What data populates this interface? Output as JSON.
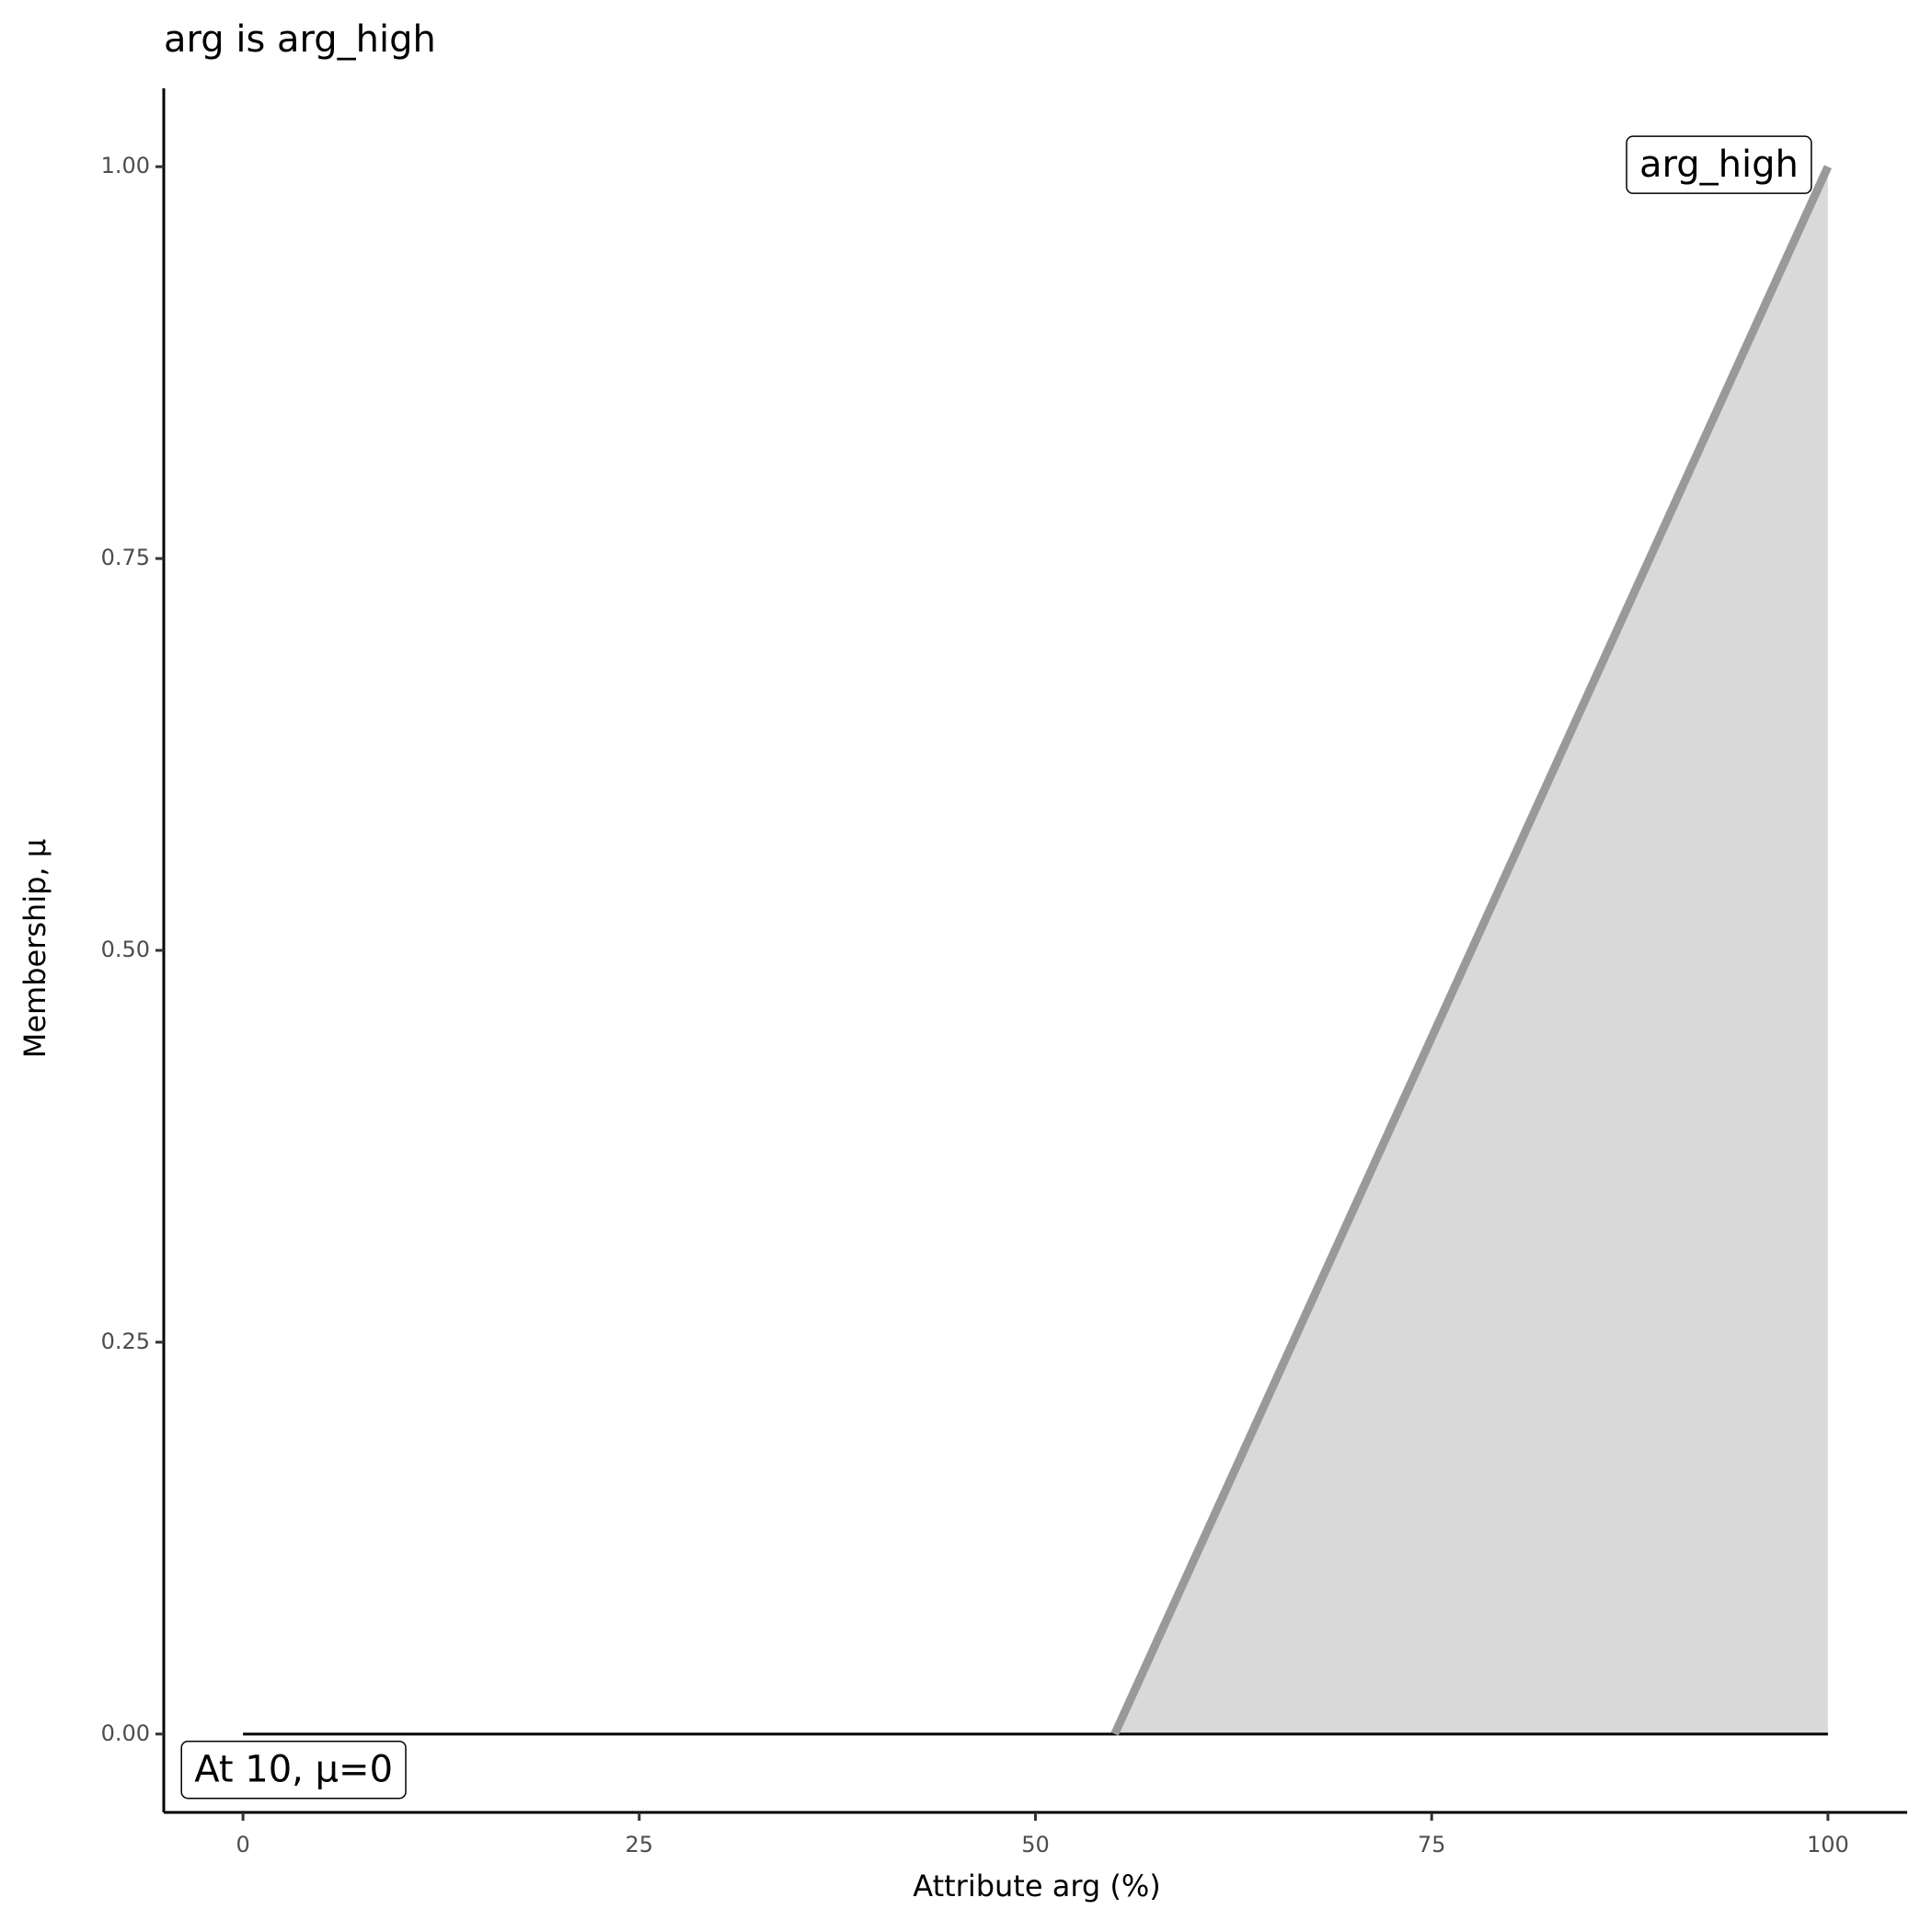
{
  "chart_data": {
    "type": "area",
    "title": "arg is arg_high",
    "x_label": "Attribute arg (%)",
    "y_label": "Membership, μ",
    "series": [
      {
        "color": "#999999",
        "fill": "#d9d9d9",
        "x": [
          55,
          100
        ],
        "values": [
          0,
          1
        ]
      }
    ],
    "baseline": {
      "color": "#000000",
      "x": [
        0,
        100
      ],
      "values": [
        0,
        0
      ]
    },
    "annotations": [
      {
        "text": "arg_high",
        "x": 100,
        "y": 1,
        "anchor": "end"
      },
      {
        "text": "At 10, μ=0",
        "x": -4,
        "y": -0.024,
        "anchor": "start"
      }
    ],
    "xlim": [
      -5,
      105
    ],
    "xticks": [
      0,
      25,
      50,
      75,
      100
    ],
    "ylim": [
      -0.05,
      1.05
    ],
    "yticks": [
      {
        "value": 0,
        "label": "0.00"
      },
      {
        "value": 0.25,
        "label": "0.25"
      },
      {
        "value": 0.5,
        "label": "0.50"
      },
      {
        "value": 0.75,
        "label": "0.75"
      },
      {
        "value": 1,
        "label": "1.00"
      }
    ],
    "grid": false
  }
}
